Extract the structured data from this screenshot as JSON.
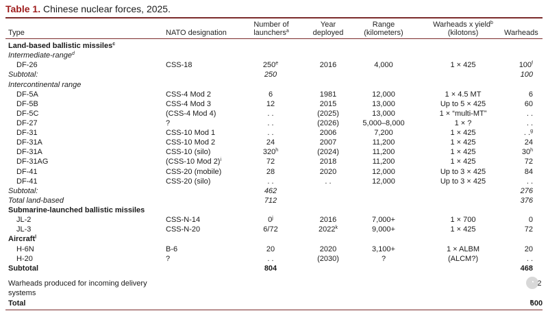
{
  "caption": {
    "label": "Table 1.",
    "title": "Chinese nuclear forces, 2025."
  },
  "headers": {
    "type": "Type",
    "nato": "NATO designation",
    "launchers_1": "Number of",
    "launchers_2": "launchers",
    "launchers_note": "a",
    "year_1": "Year",
    "year_2": "deployed",
    "range_1": "Range",
    "range_2": "(kilometers)",
    "yield_1": "Warheads x yield",
    "yield_note": "b",
    "yield_2": "(kilotons)",
    "warheads": "Warheads"
  },
  "rows": [
    {
      "type": "Land-based ballistic missiles",
      "type_note": "c",
      "style": "section"
    },
    {
      "type": "Intermediate-range",
      "type_note": "d",
      "style": "sub"
    },
    {
      "type": "DF-26",
      "nato": "CSS-18",
      "launchers": "250",
      "launchers_note": "e",
      "year": "2016",
      "range": "4,000",
      "yield": "1 × 425",
      "warheads": "100",
      "warheads_note": "f"
    },
    {
      "type": "Subtotal:",
      "launchers": "250",
      "warheads": "100",
      "style": "sub ital"
    },
    {
      "type": "Intercontinental range",
      "style": "sub"
    },
    {
      "type": "DF-5A",
      "nato": "CSS-4 Mod 2",
      "launchers": "6",
      "year": "1981",
      "range": "12,000",
      "yield": "1 × 4.5 MT",
      "warheads": "6"
    },
    {
      "type": "DF-5B",
      "nato": "CSS-4 Mod 3",
      "launchers": "12",
      "year": "2015",
      "range": "13,000",
      "yield": "Up to 5 × 425",
      "warheads": "60"
    },
    {
      "type": "DF-5C",
      "nato": "(CSS-4 Mod 4)",
      "launchers": ". .",
      "year": "(2025)",
      "range": "13,000",
      "yield": "1 × “multi-MT”",
      "warheads": ". ."
    },
    {
      "type": "DF-27",
      "nato": "?",
      "launchers": ". .",
      "year": "(2026)",
      "range": "5,000–8,000",
      "yield": "1 × ?",
      "warheads": ". ."
    },
    {
      "type": "DF-31",
      "nato": "CSS-10 Mod 1",
      "launchers": ". .",
      "year": "2006",
      "range": "7,200",
      "yield": "1 × 425",
      "warheads": ". .",
      "warheads_note": "g"
    },
    {
      "type": "DF-31A",
      "nato": "CSS-10 Mod 2",
      "launchers": "24",
      "year": "2007",
      "range": "11,200",
      "yield": "1 × 425",
      "warheads": "24"
    },
    {
      "type": "DF-31A",
      "nato": "CSS-10 (silo)",
      "launchers": "320",
      "launchers_note": "h",
      "year": "(2024)",
      "range": "11,200",
      "yield": "1 × 425",
      "warheads": "30",
      "warheads_note": "h"
    },
    {
      "type": "DF-31AG",
      "nato": "(CSS-10 Mod 2)",
      "nato_note": "i",
      "launchers": "72",
      "year": "2018",
      "range": "11,200",
      "yield": "1 × 425",
      "warheads": "72"
    },
    {
      "type": "DF-41",
      "nato": "CSS-20 (mobile)",
      "launchers": "28",
      "year": "2020",
      "range": "12,000",
      "yield": "Up to 3 × 425",
      "warheads": "84"
    },
    {
      "type": "DF-41",
      "nato": "CSS-20 (silo)",
      "launchers": ". .",
      "year": ". .",
      "range": "12,000",
      "yield": "Up to 3 × 425",
      "warheads": ". ."
    },
    {
      "type": "Subtotal:",
      "launchers": "462",
      "warheads": "276",
      "style": "sub ital"
    },
    {
      "type": "Total land-based",
      "launchers": "712",
      "warheads": "376",
      "style": "sub ital"
    },
    {
      "type": "Submarine-launched ballistic missiles",
      "style": "section"
    },
    {
      "type": "JL-2",
      "nato": "CSS-N-14",
      "launchers": "0",
      "launchers_note": "j",
      "year": "2016",
      "range": "7,000+",
      "yield": "1 × 700",
      "warheads": "0"
    },
    {
      "type": "JL-3",
      "nato": "CSS-N-20",
      "launchers": "6/72",
      "year": "2022",
      "year_note": "k",
      "range": "9,000+",
      "yield": "1 × 425",
      "warheads": "72"
    },
    {
      "type": "Aircraft",
      "type_note": "l",
      "style": "section"
    },
    {
      "type": "H-6N",
      "nato": "B-6",
      "launchers": "20",
      "year": "2020",
      "range": "3,100+",
      "yield": "1 × ALBM",
      "warheads": "20"
    },
    {
      "type": "H-20",
      "nato": "?",
      "launchers": ". .",
      "year": "(2030)",
      "range": "?",
      "yield": "(ALCM?)",
      "warheads": ". ."
    },
    {
      "type": "Subtotal",
      "launchers": "804",
      "warheads": "468",
      "style": "section bold"
    }
  ],
  "produced": {
    "label": "Warheads produced for incoming delivery systems",
    "warheads": "132",
    "warheads_note": "m"
  },
  "total": {
    "label": "Total",
    "warheads": "600",
    "warheads_note": "n"
  },
  "colors": {
    "label": "#9e1b1b",
    "rule": "#7a2a2a"
  },
  "watermark_icon": "circle-logo-icon"
}
